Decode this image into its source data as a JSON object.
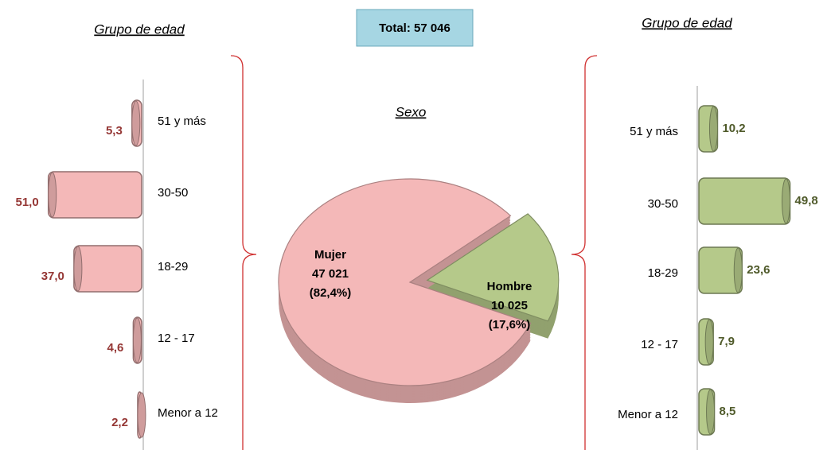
{
  "chart_data": [
    {
      "type": "bar",
      "title": "Grupo de edad",
      "categories": [
        "51 y más",
        "30-50",
        "18-29",
        "12 - 17",
        "Menor a 12"
      ],
      "values": [
        5.3,
        51.0,
        37.0,
        4.6,
        2.2
      ],
      "value_labels": [
        "5,3",
        "51,0",
        "37,0",
        "4,6",
        "2,2"
      ],
      "color": "#f4b8b8",
      "direction": "left"
    },
    {
      "type": "pie",
      "title": "Sexo",
      "annotation": "Total: 57 046",
      "categories": [
        "Mujer",
        "Hombre"
      ],
      "values": [
        47021,
        10025
      ],
      "value_labels": [
        "47 021",
        "10 025"
      ],
      "percent_labels": [
        "(82,4%)",
        "(17,6%)"
      ],
      "colors": [
        "#f4b8b8",
        "#b5c98a"
      ]
    },
    {
      "type": "bar",
      "title": "Grupo de edad",
      "categories": [
        "51 y más",
        "30-50",
        "18-29",
        "12 - 17",
        "Menor a 12"
      ],
      "values": [
        10.2,
        49.8,
        23.6,
        7.9,
        8.5
      ],
      "value_labels": [
        "10,2",
        "49,8",
        "23,6",
        "7,9",
        "8,5"
      ],
      "color": "#b5c98a",
      "direction": "right"
    }
  ]
}
